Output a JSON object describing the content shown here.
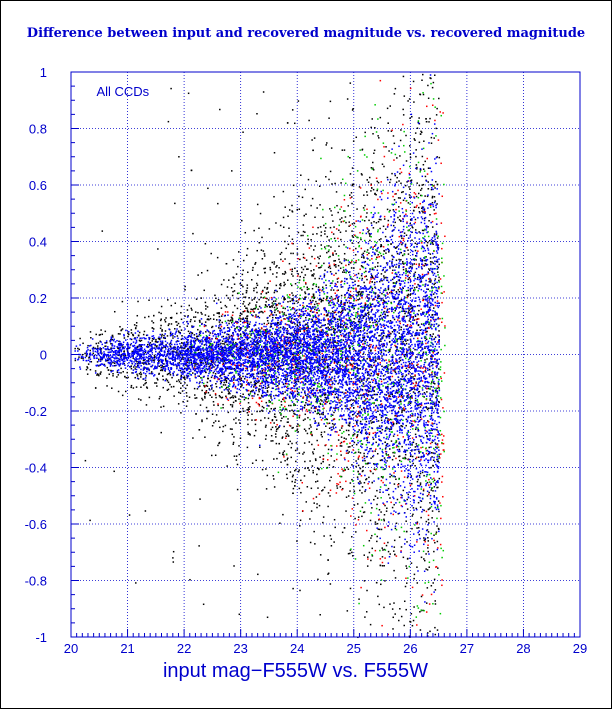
{
  "chart_data": {
    "type": "scatter",
    "title": "Difference between input and recovered magnitude vs. recovered magnitude",
    "xlabel": "input mag−F555W vs. F555W",
    "ylabel": "",
    "annotation": "All CCDs",
    "xlim": [
      20,
      29
    ],
    "ylim": [
      -1,
      1
    ],
    "x_ticks": [
      "20",
      "21",
      "22",
      "23",
      "24",
      "25",
      "26",
      "27",
      "28",
      "29"
    ],
    "y_ticks": [
      "1",
      "0.8",
      "0.6",
      "0.4",
      "0.2",
      "0",
      "-0.2",
      "-0.4",
      "-0.6",
      "-0.8",
      "-1"
    ],
    "grid": true,
    "grid_style": "dotted",
    "colors": {
      "axis": "#0000cc",
      "grid": "#0000cc",
      "series_black": "#000000",
      "series_red": "#ff0000",
      "series_green": "#00cc00",
      "series_blue": "#0000ff"
    },
    "series_summary": [
      {
        "color": "#000000",
        "x_range": [
          20,
          26.5
        ],
        "spread_at_x": [
          [
            20,
            0.03
          ],
          [
            22,
            0.1
          ],
          [
            24,
            0.25
          ],
          [
            25,
            0.35
          ],
          [
            26,
            0.55
          ]
        ]
      },
      {
        "color": "#ff0000",
        "x_range": [
          22,
          26.6
        ],
        "spread_at_x": [
          [
            22,
            0.05
          ],
          [
            24,
            0.15
          ],
          [
            25,
            0.3
          ],
          [
            26,
            0.5
          ]
        ]
      },
      {
        "color": "#00cc00",
        "x_range": [
          22,
          26.6
        ],
        "spread_at_x": [
          [
            22,
            0.05
          ],
          [
            24,
            0.15
          ],
          [
            25,
            0.3
          ],
          [
            26,
            0.5
          ]
        ]
      },
      {
        "color": "#0000ff",
        "x_range": [
          20,
          26.5
        ],
        "spread_at_x": [
          [
            20,
            0.02
          ],
          [
            22,
            0.04
          ],
          [
            24,
            0.08
          ],
          [
            25,
            0.15
          ],
          [
            26,
            0.3
          ]
        ]
      }
    ]
  }
}
